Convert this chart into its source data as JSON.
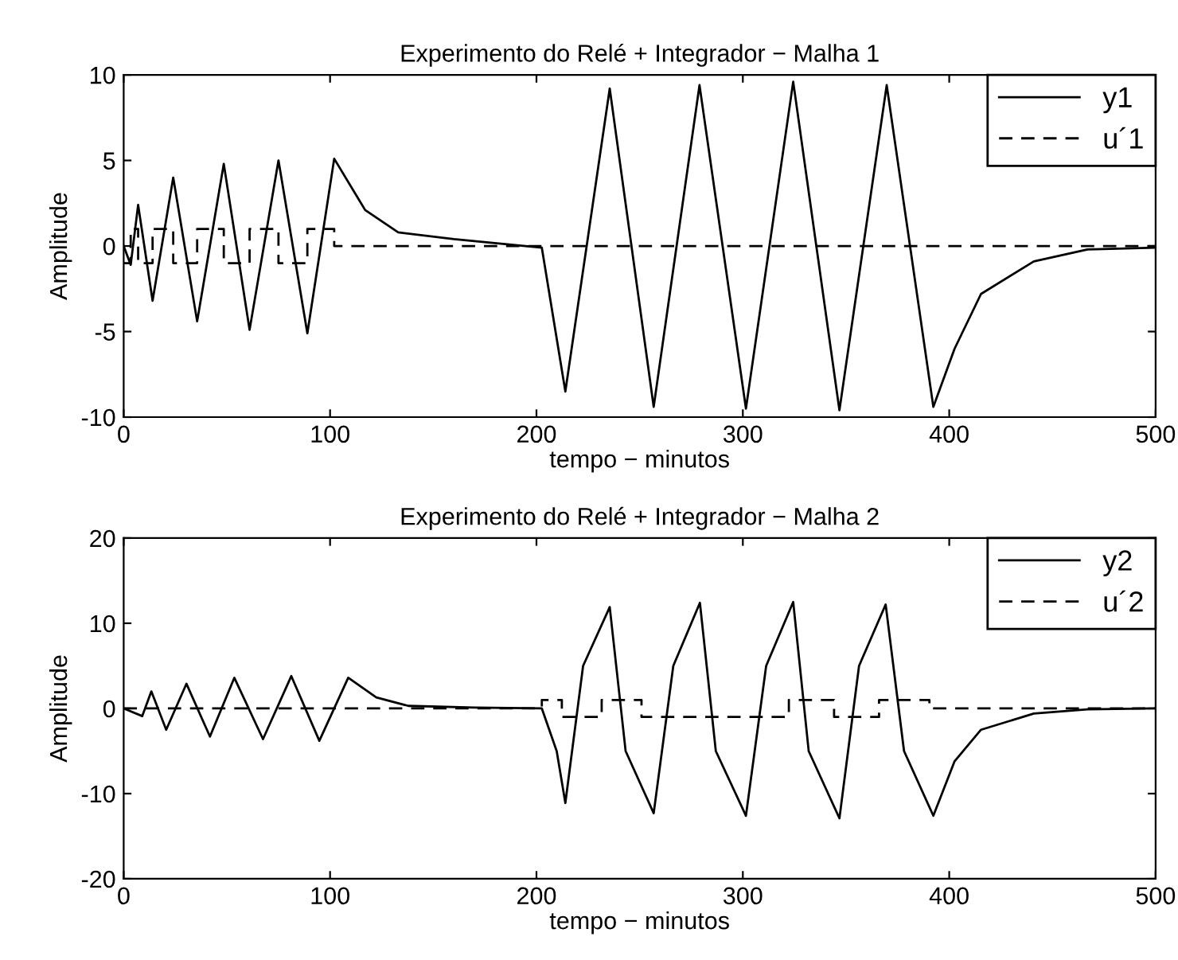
{
  "chart_data": [
    {
      "type": "line",
      "title": "Experimento do Relé + Integrador − Malha 1",
      "xlabel": "tempo − minutos",
      "ylabel": "Amplitude",
      "xlim": [
        0,
        500
      ],
      "ylim": [
        -10,
        10
      ],
      "xticks": [
        0,
        100,
        200,
        300,
        400,
        500
      ],
      "yticks": [
        -10,
        -5,
        0,
        5,
        10
      ],
      "grid": false,
      "legend": "top right",
      "series": [
        {
          "name": "y1",
          "color": "#000000",
          "line_style": "solid",
          "x": [
            0,
            3.4,
            7,
            14,
            24,
            35.6,
            48.5,
            61,
            75,
            89,
            102,
            117,
            133,
            160,
            202.6,
            214,
            235.5,
            256.8,
            279,
            301.5,
            324.4,
            346.8,
            369.7,
            392.3,
            402.6,
            415.4,
            441,
            467,
            500
          ],
          "values": [
            0,
            -1.1,
            2.4,
            -3.2,
            4.0,
            -4.4,
            4.8,
            -4.9,
            5.0,
            -5.1,
            5.1,
            2.1,
            0.8,
            0.4,
            -0.1,
            -8.5,
            9.2,
            -9.4,
            9.4,
            -9.5,
            9.6,
            -9.6,
            9.4,
            -9.4,
            -6.0,
            -2.8,
            -0.9,
            -0.2,
            -0.1
          ]
        },
        {
          "name": "u´1",
          "color": "#000000",
          "type": "step",
          "line_style": "dashed",
          "x": [
            0,
            3.4,
            7,
            14,
            24,
            35.6,
            48.5,
            61,
            75,
            89,
            102,
            500
          ],
          "values": [
            -1,
            1,
            -1,
            1,
            -1,
            1,
            -1,
            1,
            -1,
            1,
            0,
            0
          ]
        }
      ]
    },
    {
      "type": "line",
      "title": "Experimento do Relé + Integrador − Malha 2",
      "xlabel": "tempo − minutos",
      "ylabel": "Amplitude",
      "xlim": [
        0,
        500
      ],
      "ylim": [
        -20,
        20
      ],
      "xticks": [
        0,
        100,
        200,
        300,
        400,
        500
      ],
      "yticks": [
        -20,
        -10,
        0,
        10,
        20
      ],
      "grid": false,
      "legend": "top right",
      "series": [
        {
          "name": "y2",
          "color": "#000000",
          "line_style": "solid",
          "x": [
            0,
            9,
            13.4,
            20.6,
            30.4,
            41.8,
            53.6,
            67.5,
            81.2,
            94.8,
            108.8,
            122.4,
            137.9,
            170,
            202.6,
            209.8,
            214,
            222.6,
            235.5,
            243.2,
            256.8,
            266.3,
            279.2,
            286.9,
            301.5,
            311.3,
            324.4,
            331.9,
            346.8,
            356.3,
            369.2,
            378.1,
            392.3,
            402.6,
            415.4,
            441,
            467,
            500
          ],
          "values": [
            0,
            -0.9,
            2.0,
            -2.5,
            2.9,
            -3.3,
            3.6,
            -3.6,
            3.8,
            -3.8,
            3.6,
            1.3,
            0.3,
            0.1,
            0,
            -5,
            -11.1,
            5,
            11.9,
            -5,
            -12.3,
            5,
            12.4,
            -5,
            -12.6,
            5,
            12.5,
            -5,
            -12.9,
            5,
            12.2,
            -5,
            -12.6,
            -6.2,
            -2.5,
            -0.6,
            -0.1,
            0
          ]
        },
        {
          "name": "u´2",
          "color": "#000000",
          "type": "step",
          "line_style": "dashed",
          "x": [
            0,
            202.6,
            212.3,
            231.6,
            250.9,
            322.3,
            344.2,
            366,
            390.4,
            500
          ],
          "values": [
            0,
            1,
            -1,
            1,
            -1,
            1,
            -1,
            1,
            0,
            0
          ]
        }
      ]
    }
  ]
}
